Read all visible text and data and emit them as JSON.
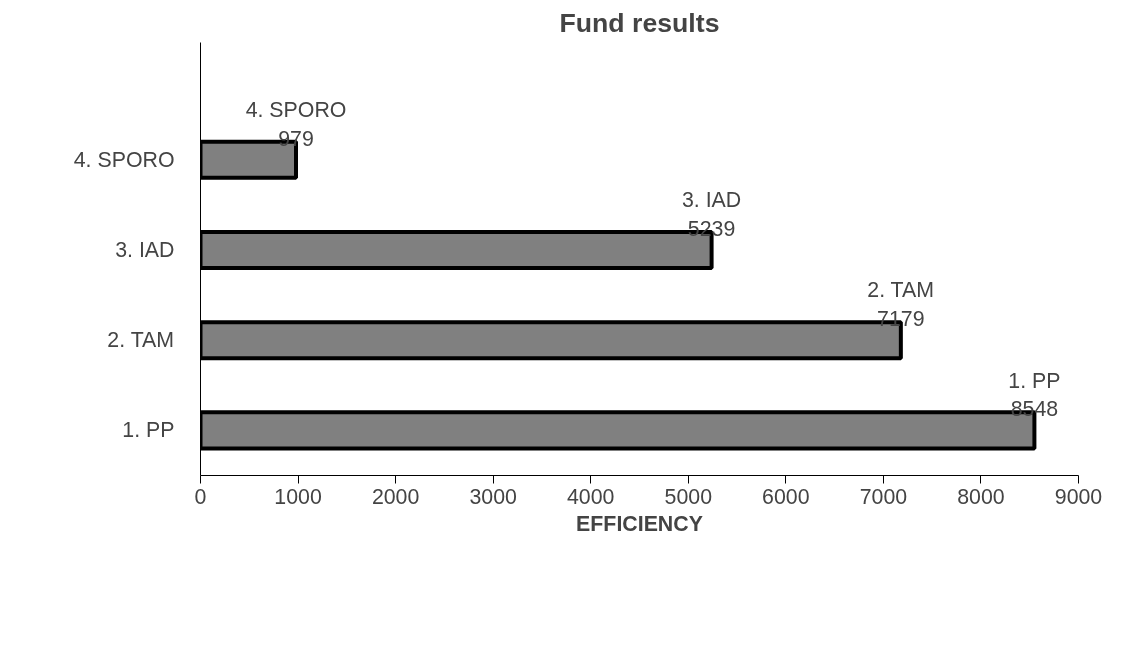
{
  "chart_data": {
    "type": "bar",
    "orientation": "horizontal",
    "title": "Fund results",
    "xlabel": "EFFICIENCY",
    "categories": [
      "4. SPORO",
      "3. IAD",
      "2. TAM",
      "1. PP"
    ],
    "values": [
      979,
      5239,
      7179,
      8548
    ],
    "value_labels": [
      "4. SPORO\n979",
      "3. IAD\n5239",
      "2. TAM\n7179",
      "1. PP\n8548"
    ],
    "color": "#808080",
    "xlim": [
      0,
      9000
    ],
    "xticks": [
      0,
      1000,
      2000,
      3000,
      4000,
      5000,
      6000,
      7000,
      8000,
      9000
    ],
    "grid": false
  }
}
